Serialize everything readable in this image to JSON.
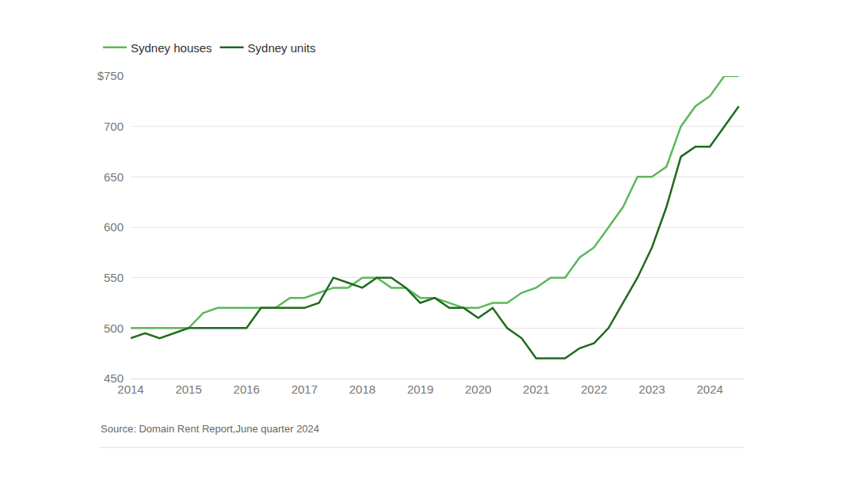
{
  "chart_data": {
    "type": "line",
    "x": [
      2014,
      2014.25,
      2014.5,
      2014.75,
      2015,
      2015.25,
      2015.5,
      2015.75,
      2016,
      2016.25,
      2016.5,
      2016.75,
      2017,
      2017.25,
      2017.5,
      2017.75,
      2018,
      2018.25,
      2018.5,
      2018.75,
      2019,
      2019.25,
      2019.5,
      2019.75,
      2020,
      2020.25,
      2020.5,
      2020.75,
      2021,
      2021.25,
      2021.5,
      2021.75,
      2022,
      2022.25,
      2022.5,
      2022.75,
      2023,
      2023.25,
      2023.5,
      2023.75,
      2024,
      2024.25,
      2024.5
    ],
    "series": [
      {
        "name": "Sydney houses",
        "color": "#5cb85c",
        "values": [
          500,
          500,
          500,
          500,
          500,
          515,
          520,
          520,
          520,
          520,
          520,
          530,
          530,
          535,
          540,
          540,
          550,
          550,
          540,
          540,
          530,
          530,
          525,
          520,
          520,
          525,
          525,
          535,
          540,
          550,
          550,
          570,
          580,
          600,
          620,
          650,
          650,
          660,
          700,
          720,
          730,
          750,
          750
        ]
      },
      {
        "name": "Sydney units",
        "color": "#1e6b1e",
        "values": [
          490,
          495,
          490,
          495,
          500,
          500,
          500,
          500,
          500,
          520,
          520,
          520,
          520,
          525,
          550,
          545,
          540,
          550,
          550,
          540,
          525,
          530,
          520,
          520,
          510,
          520,
          500,
          490,
          470,
          470,
          470,
          480,
          485,
          500,
          525,
          550,
          580,
          620,
          670,
          680,
          680,
          700,
          720
        ]
      }
    ],
    "xlim": [
      2014,
      2024.6
    ],
    "xticks": [
      2014,
      2015,
      2016,
      2017,
      2018,
      2019,
      2020,
      2021,
      2022,
      2023,
      2024
    ],
    "ylim": [
      450,
      750
    ],
    "yticks": [
      450,
      500,
      550,
      600,
      650,
      700,
      {
        "value": 750,
        "label": "$750"
      }
    ],
    "grid": true,
    "legend": "top left",
    "annotations": [
      "Source: Domain Rent Report,June quarter 2024"
    ]
  }
}
